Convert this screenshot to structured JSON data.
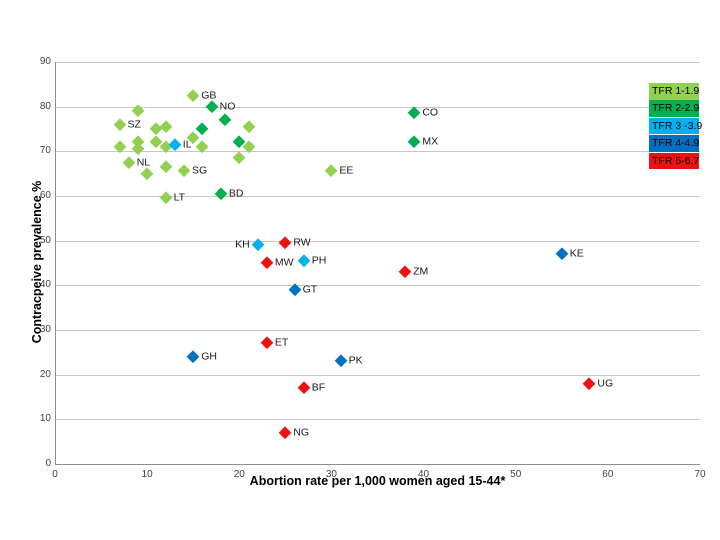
{
  "chart_data": {
    "type": "scatter",
    "title": "",
    "xlabel": "Abortion rate per 1,000 women aged 15-44*",
    "ylabel": "Contracpeive prevalence %",
    "xlim": [
      0,
      70
    ],
    "ylim": [
      0,
      90
    ],
    "x_ticks": [
      0,
      10,
      20,
      30,
      40,
      50,
      60,
      70
    ],
    "y_ticks": [
      0,
      10,
      20,
      30,
      40,
      50,
      60,
      70,
      80,
      90
    ],
    "grid": "horizontal",
    "legend_position": "top-right",
    "legend": [
      {
        "label": "TFR 1-1.9",
        "color": "#92d050"
      },
      {
        "label": "TFR 2-2.9",
        "color": "#00b050"
      },
      {
        "label": "TFR 3 -3.9",
        "color": "#00b0f0"
      },
      {
        "label": "TFR 4-4.9",
        "color": "#0070c0"
      },
      {
        "label": "TFR 5-6.7",
        "color": "#ee1111"
      }
    ],
    "series": [
      {
        "name": "TFR 1-1.9",
        "color": "#92d050",
        "points": [
          {
            "x": 15,
            "y": 82.5,
            "label": "GB"
          },
          {
            "x": 9,
            "y": 79
          },
          {
            "x": 7,
            "y": 76,
            "label": "SZ"
          },
          {
            "x": 12,
            "y": 75.5
          },
          {
            "x": 11,
            "y": 75
          },
          {
            "x": 21,
            "y": 75.5
          },
          {
            "x": 15,
            "y": 73
          },
          {
            "x": 9,
            "y": 72
          },
          {
            "x": 11,
            "y": 72
          },
          {
            "x": 7,
            "y": 71
          },
          {
            "x": 12,
            "y": 71
          },
          {
            "x": 16,
            "y": 71
          },
          {
            "x": 21,
            "y": 71
          },
          {
            "x": 9,
            "y": 70.5
          },
          {
            "x": 20,
            "y": 68.5
          },
          {
            "x": 8,
            "y": 67.5,
            "label": "NL"
          },
          {
            "x": 12,
            "y": 66.5
          },
          {
            "x": 10,
            "y": 65
          },
          {
            "x": 14,
            "y": 65.5,
            "label": "SG"
          },
          {
            "x": 30,
            "y": 65.5,
            "label": "EE"
          },
          {
            "x": 12,
            "y": 59.5,
            "label": "LT"
          }
        ]
      },
      {
        "name": "TFR 2-2.9",
        "color": "#00b050",
        "points": [
          {
            "x": 17,
            "y": 80,
            "label": "NO"
          },
          {
            "x": 18.5,
            "y": 77
          },
          {
            "x": 16,
            "y": 75
          },
          {
            "x": 20,
            "y": 72
          },
          {
            "x": 39,
            "y": 78.5,
            "label": "CO"
          },
          {
            "x": 39,
            "y": 72,
            "label": "MX"
          },
          {
            "x": 18,
            "y": 60.5,
            "label": "BD"
          }
        ]
      },
      {
        "name": "TFR 3 -3.9",
        "color": "#00b0f0",
        "points": [
          {
            "x": 13,
            "y": 71.5,
            "label": "IL"
          },
          {
            "x": 22,
            "y": 49,
            "label": "KH",
            "label_side": "left"
          },
          {
            "x": 27,
            "y": 45.5,
            "label": "PH"
          }
        ]
      },
      {
        "name": "TFR 4-4.9",
        "color": "#0070c0",
        "points": [
          {
            "x": 55,
            "y": 47,
            "label": "KE"
          },
          {
            "x": 26,
            "y": 39,
            "label": "GT"
          },
          {
            "x": 15,
            "y": 24,
            "label": "GH"
          },
          {
            "x": 31,
            "y": 23,
            "label": "PK"
          }
        ]
      },
      {
        "name": "TFR 5-6.7",
        "color": "#ee1111",
        "points": [
          {
            "x": 25,
            "y": 49.5,
            "label": "RW"
          },
          {
            "x": 23,
            "y": 45,
            "label": "MW"
          },
          {
            "x": 38,
            "y": 43,
            "label": "ZM"
          },
          {
            "x": 23,
            "y": 27,
            "label": "ET"
          },
          {
            "x": 27,
            "y": 17,
            "label": "BF"
          },
          {
            "x": 25,
            "y": 7,
            "label": "NG"
          },
          {
            "x": 58,
            "y": 18,
            "label": "UG"
          }
        ]
      }
    ]
  }
}
